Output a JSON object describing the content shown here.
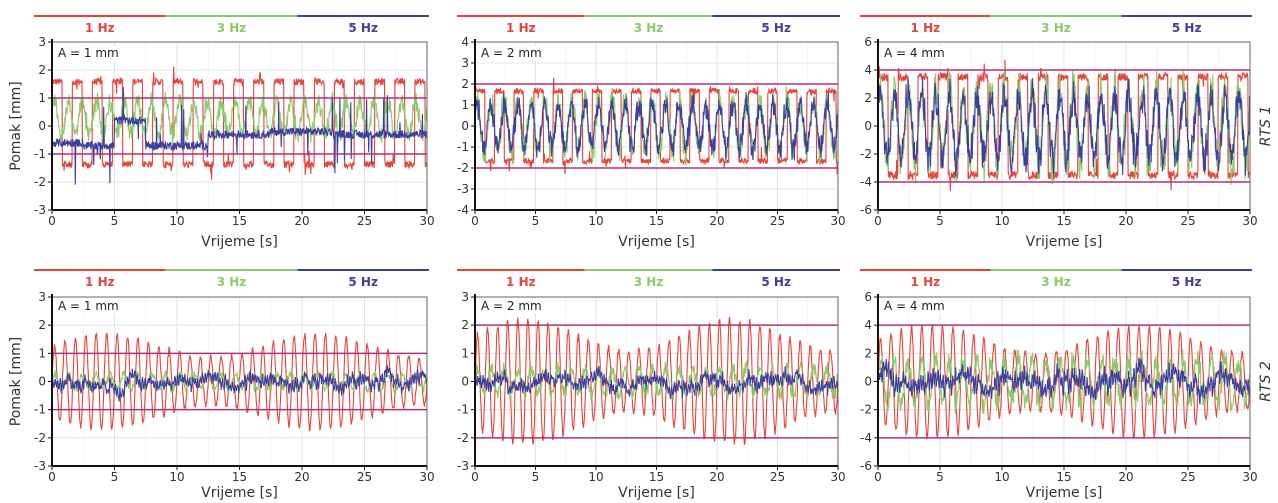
{
  "colors": {
    "1 Hz": "#e8433a",
    "3 Hz": "#8cc96a",
    "5 Hz": "#3d3f9e",
    "limit": "#b0307a",
    "grid": "#dddddd"
  },
  "legend": [
    "1 Hz",
    "3 Hz",
    "5 Hz"
  ],
  "row_labels": [
    "RTS 1",
    "RTS 2"
  ],
  "chart_data": [
    {
      "type": "line",
      "row": "RTS 1",
      "amplitude_label": "A = 1 mm",
      "xlabel": "Vrijeme [s]",
      "ylabel": "Pomak [mm]",
      "xlim": [
        0,
        30
      ],
      "ylim": [
        -3,
        3
      ],
      "xticks": [
        0,
        5,
        10,
        15,
        20,
        25,
        30
      ],
      "yticks": [
        -3,
        -2,
        -1,
        0,
        1,
        2,
        3
      ],
      "limits": [
        1,
        -1
      ],
      "grid": true,
      "series": [
        {
          "name": "1 Hz",
          "freq": 1,
          "amp": 1.6,
          "offset": 0.1,
          "shape": "square"
        },
        {
          "name": "3 Hz",
          "freq": 3,
          "amp": 0.8,
          "offset": 0.3,
          "shape": "noisy"
        },
        {
          "name": "5 Hz",
          "freq": 5,
          "amp": 0.6,
          "offset": -0.5,
          "shape": "step"
        }
      ]
    },
    {
      "type": "line",
      "row": "RTS 1",
      "amplitude_label": "A = 2 mm",
      "xlabel": "Vrijeme [s]",
      "ylabel": "",
      "xlim": [
        0,
        30
      ],
      "ylim": [
        -4,
        4
      ],
      "xticks": [
        0,
        5,
        10,
        15,
        20,
        25,
        30
      ],
      "yticks": [
        -4,
        -3,
        -2,
        -1,
        0,
        1,
        2,
        3,
        4
      ],
      "limits": [
        2,
        -2
      ],
      "grid": true,
      "series": [
        {
          "name": "1 Hz",
          "freq": 1,
          "amp": 1.8,
          "offset": 0,
          "shape": "square"
        },
        {
          "name": "3 Hz",
          "freq": 3,
          "amp": 1.6,
          "offset": 0,
          "shape": "noisy"
        },
        {
          "name": "5 Hz",
          "freq": 5,
          "amp": 1.4,
          "offset": 0,
          "shape": "noisy"
        }
      ]
    },
    {
      "type": "line",
      "row": "RTS 1",
      "amplitude_label": "A = 4 mm",
      "xlabel": "Vrijeme [s]",
      "ylabel": "",
      "xlim": [
        0,
        30
      ],
      "ylim": [
        -6,
        6
      ],
      "xticks": [
        0,
        5,
        10,
        15,
        20,
        25,
        30
      ],
      "yticks": [
        -6,
        -4,
        -2,
        0,
        2,
        4,
        6
      ],
      "limits": [
        4,
        -4
      ],
      "grid": true,
      "series": [
        {
          "name": "1 Hz",
          "freq": 1,
          "amp": 3.8,
          "offset": 0,
          "shape": "square"
        },
        {
          "name": "3 Hz",
          "freq": 3,
          "amp": 3.6,
          "offset": 0,
          "shape": "noisy"
        },
        {
          "name": "5 Hz",
          "freq": 5,
          "amp": 3.0,
          "offset": 0,
          "shape": "noisy"
        }
      ]
    },
    {
      "type": "line",
      "row": "RTS 2",
      "amplitude_label": "A = 1 mm",
      "xlabel": "Vrijeme [s]",
      "ylabel": "Pomak [mm]",
      "xlim": [
        0,
        30
      ],
      "ylim": [
        -3,
        3
      ],
      "xticks": [
        0,
        5,
        10,
        15,
        20,
        25,
        30
      ],
      "yticks": [
        -3,
        -2,
        -1,
        0,
        1,
        2,
        3
      ],
      "limits": [
        1,
        -1
      ],
      "grid": true,
      "series": [
        {
          "name": "1 Hz",
          "freq": 1,
          "amp": 1.7,
          "offset": 0,
          "shape": "sine"
        },
        {
          "name": "3 Hz",
          "freq": 3,
          "amp": 0.35,
          "offset": 0,
          "shape": "noisy"
        },
        {
          "name": "5 Hz",
          "freq": 5,
          "amp": 0.3,
          "offset": 0,
          "shape": "wander"
        }
      ]
    },
    {
      "type": "line",
      "row": "RTS 2",
      "amplitude_label": "A = 2 mm",
      "xlabel": "Vrijeme [s]",
      "ylabel": "",
      "xlim": [
        0,
        30
      ],
      "ylim": [
        -3,
        3
      ],
      "xticks": [
        0,
        5,
        10,
        15,
        20,
        25,
        30
      ],
      "yticks": [
        -3,
        -2,
        -1,
        0,
        1,
        2,
        3
      ],
      "limits": [
        2,
        -2
      ],
      "grid": true,
      "series": [
        {
          "name": "1 Hz",
          "freq": 1,
          "amp": 2.2,
          "offset": 0,
          "shape": "sine"
        },
        {
          "name": "3 Hz",
          "freq": 3,
          "amp": 0.6,
          "offset": 0,
          "shape": "noisy"
        },
        {
          "name": "5 Hz",
          "freq": 5,
          "amp": 0.3,
          "offset": 0,
          "shape": "wander"
        }
      ]
    },
    {
      "type": "line",
      "row": "RTS 2",
      "amplitude_label": "A = 4 mm",
      "xlabel": "Vrijeme [s]",
      "ylabel": "",
      "xlim": [
        0,
        30
      ],
      "ylim": [
        -6,
        6
      ],
      "xticks": [
        0,
        5,
        10,
        15,
        20,
        25,
        30
      ],
      "yticks": [
        -6,
        -4,
        -2,
        0,
        2,
        4,
        6
      ],
      "limits": [
        4,
        -4
      ],
      "grid": true,
      "series": [
        {
          "name": "1 Hz",
          "freq": 1,
          "amp": 4.0,
          "offset": 0,
          "shape": "sine"
        },
        {
          "name": "3 Hz",
          "freq": 3,
          "amp": 2.0,
          "offset": 0,
          "shape": "noisy"
        },
        {
          "name": "5 Hz",
          "freq": 5,
          "amp": 0.9,
          "offset": 0,
          "shape": "wander"
        }
      ]
    }
  ]
}
